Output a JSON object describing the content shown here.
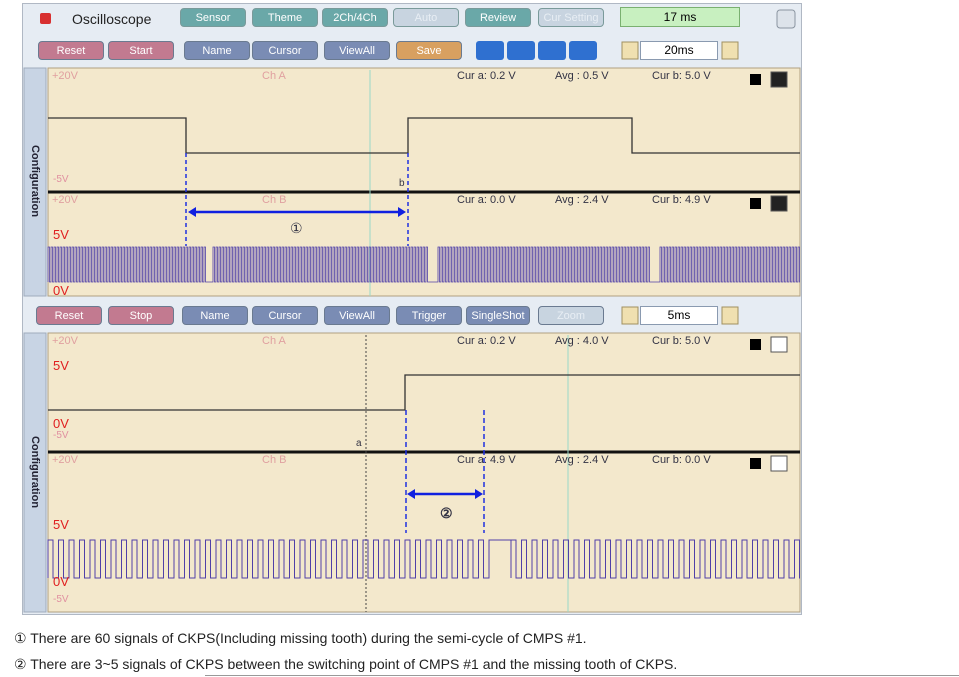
{
  "toolbar": {
    "title": "Oscilloscope",
    "tabs": [
      "Sensor",
      "Theme",
      "2Ch/4Ch",
      "Auto",
      "Review",
      "Cur Setting"
    ],
    "time": "17 ms"
  },
  "top_scope": {
    "buttons": [
      "Reset",
      "Start",
      "Name",
      "Cursor",
      "ViewAll",
      "Save"
    ],
    "timebase": "20ms",
    "side_label": "Configuration",
    "channels": [
      {
        "max": "+20V",
        "name": "Ch A",
        "cur_a": "Cur a: 0.2 V",
        "avg": "Avg : 0.5 V",
        "cur_b": "Cur b: 5.0 V",
        "levels": [
          "-5V"
        ],
        "marker": "b"
      },
      {
        "max": "+20V",
        "name": "Ch B",
        "cur_a": "Cur a: 0.0 V",
        "avg": "Avg : 2.4 V",
        "cur_b": "Cur b: 4.9 V",
        "levels": [
          "5V",
          "0V"
        ]
      }
    ],
    "annotation": "①"
  },
  "bottom_scope": {
    "buttons": [
      "Reset",
      "Stop",
      "Name",
      "Cursor",
      "ViewAll",
      "Trigger",
      "SingleShot",
      "Zoom"
    ],
    "timebase": "5ms",
    "side_label": "Configuration",
    "channels": [
      {
        "max": "+20V",
        "name": "Ch A",
        "cur_a": "Cur a: 0.2 V",
        "avg": "Avg : 4.0 V",
        "cur_b": "Cur b: 5.0 V",
        "levels": [
          "5V",
          "0V",
          "-5V"
        ],
        "marker": "a"
      },
      {
        "max": "+20V",
        "name": "Ch B",
        "cur_a": "Cur a: 4.9 V",
        "avg": "Avg : 2.4 V",
        "cur_b": "Cur b: 0.0 V",
        "levels": [
          "5V",
          "0V",
          "-5V"
        ]
      }
    ],
    "annotation": "②"
  },
  "notes": [
    "① There are 60 signals of CKPS(Including missing tooth) during the semi-cycle of CMPS #1.",
    "② There are 3~5 signals of CKPS between the switching point of CMPS #1 and the missing tooth of CKPS."
  ]
}
